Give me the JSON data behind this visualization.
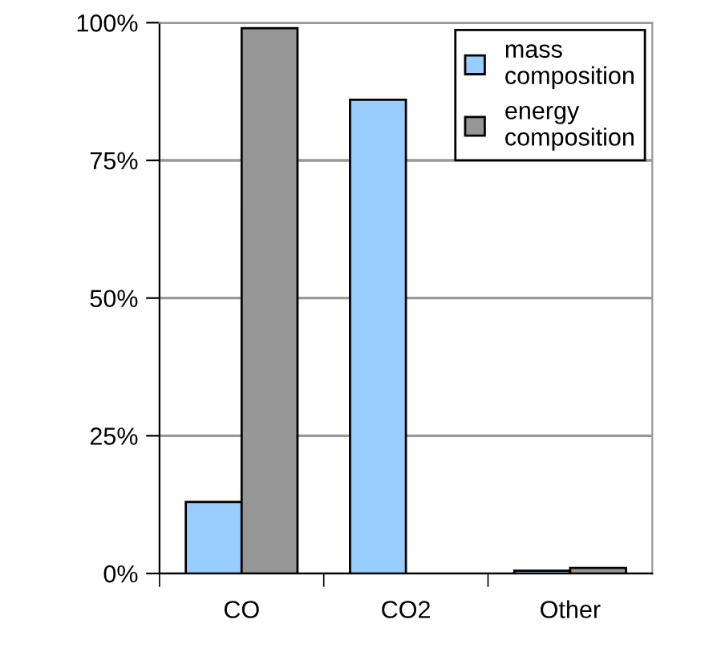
{
  "chart_data": {
    "type": "bar",
    "categories": [
      "CO",
      "CO2",
      "Other"
    ],
    "series": [
      {
        "name": "mass composition",
        "color": "#99ccff",
        "values": [
          13,
          86,
          0.5
        ]
      },
      {
        "name": "energy composition",
        "color": "#969696",
        "values": [
          99,
          null,
          1
        ]
      }
    ],
    "ylim": [
      0,
      100
    ],
    "yticks": [
      {
        "value": 0,
        "label": "0%"
      },
      {
        "value": 25,
        "label": "25%"
      },
      {
        "value": 50,
        "label": "50%"
      },
      {
        "value": 75,
        "label": "75%"
      },
      {
        "value": 100,
        "label": "100%"
      }
    ],
    "grid": "y",
    "legend": "top right"
  }
}
